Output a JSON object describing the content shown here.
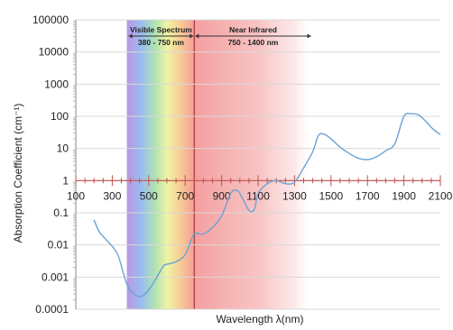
{
  "chart_data": {
    "type": "line",
    "title": "",
    "xlabel": "Wavelength λ(nm)",
    "ylabel": "Absorption Coefficient (cm⁻¹)",
    "ylog": true,
    "ylim": [
      0.0001,
      100000
    ],
    "xlim": [
      100,
      2100
    ],
    "xticks": [
      "100",
      "300",
      "500",
      "700",
      "900",
      "1100",
      "1300",
      "1500",
      "1700",
      "1900",
      "2100"
    ],
    "yticks": [
      "100000",
      "10000",
      "1000",
      "100",
      "10",
      "1",
      "0.1",
      "0.01",
      "0.001",
      "0.0001"
    ],
    "grid": "horizontal",
    "line_color": "#6aa3d6",
    "regions": [
      {
        "title": "Visible Spectrum",
        "range_label": "380 - 750 nm",
        "x_range": [
          380,
          750
        ]
      },
      {
        "title": "Near Infrared",
        "range_label": "750 - 1400 nm",
        "x_range": [
          750,
          1400
        ]
      }
    ],
    "series": [
      {
        "x": [
          200,
          230,
          280,
          330,
          380,
          420,
          460,
          500,
          540,
          580,
          600,
          650,
          700,
          740,
          760,
          800,
          850,
          900,
          950,
          980,
          1000,
          1050,
          1080,
          1100,
          1150,
          1200,
          1250,
          1300,
          1350,
          1400,
          1430,
          1460,
          1500,
          1550,
          1600,
          1650,
          1700,
          1750,
          1800,
          1850,
          1900,
          1940,
          1980,
          2020,
          2060,
          2100
        ],
        "y": [
          0.06,
          0.025,
          0.012,
          0.005,
          0.0006,
          0.0003,
          0.00025,
          0.0004,
          0.0009,
          0.0022,
          0.0025,
          0.003,
          0.005,
          0.018,
          0.023,
          0.022,
          0.035,
          0.08,
          0.4,
          0.5,
          0.4,
          0.12,
          0.13,
          0.4,
          0.8,
          1.0,
          0.8,
          0.9,
          2.5,
          8,
          25,
          28,
          20,
          11,
          7,
          5,
          4.5,
          5.5,
          8.5,
          14,
          100,
          120,
          110,
          70,
          40,
          27
        ]
      }
    ]
  }
}
